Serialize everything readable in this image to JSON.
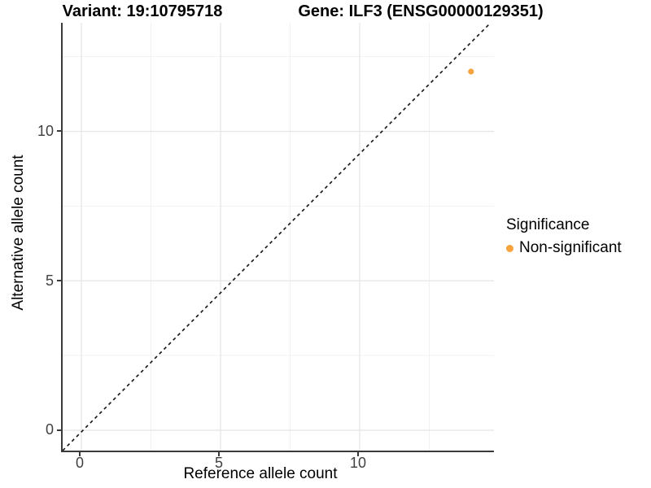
{
  "header": {
    "variant_title": "Variant: 19:10795718",
    "gene_title": "Gene: ILF3 (ENSG00000129351)"
  },
  "axes": {
    "x": {
      "label": "Reference allele count",
      "ticks": [
        {
          "value": 0,
          "label": "0"
        },
        {
          "value": 5,
          "label": "5"
        },
        {
          "value": 10,
          "label": "10"
        }
      ]
    },
    "y": {
      "label": "Alternative allele count",
      "ticks": [
        {
          "value": 0,
          "label": "0"
        },
        {
          "value": 5,
          "label": "5"
        },
        {
          "value": 10,
          "label": "10"
        }
      ]
    }
  },
  "legend": {
    "title": "Significance",
    "items": [
      {
        "label": "Non-significant",
        "color": "#F8A33D",
        "marker": "circle-icon"
      }
    ]
  },
  "chart_data": {
    "type": "scatter",
    "title": "Variant: 19:10795718 — Gene: ILF3 (ENSG00000129351)",
    "xlabel": "Reference allele count",
    "ylabel": "Alternative allele count",
    "xlim": [
      -0.67,
      14.7
    ],
    "ylim": [
      -0.68,
      13.6
    ],
    "x_ticks": [
      0,
      5,
      10
    ],
    "y_ticks": [
      0,
      5,
      10
    ],
    "x_minor_ticks": [
      2.5,
      7.5,
      12.5
    ],
    "y_minor_ticks": [
      2.5,
      7.5,
      12.5
    ],
    "grid": {
      "major": true,
      "minor": true,
      "major_color": "#e4e4e4",
      "minor_color": "#f1f1f1"
    },
    "identity_line": {
      "slope": 1,
      "intercept": 0,
      "style": "dashed",
      "color": "#111111"
    },
    "series": [
      {
        "name": "Non-significant",
        "color": "#F8A33D",
        "marker_radius": 3.6,
        "points": [
          [
            14,
            12
          ]
        ]
      }
    ],
    "legend_title": "Significance",
    "legend_position": "right",
    "background": "#ffffff"
  }
}
